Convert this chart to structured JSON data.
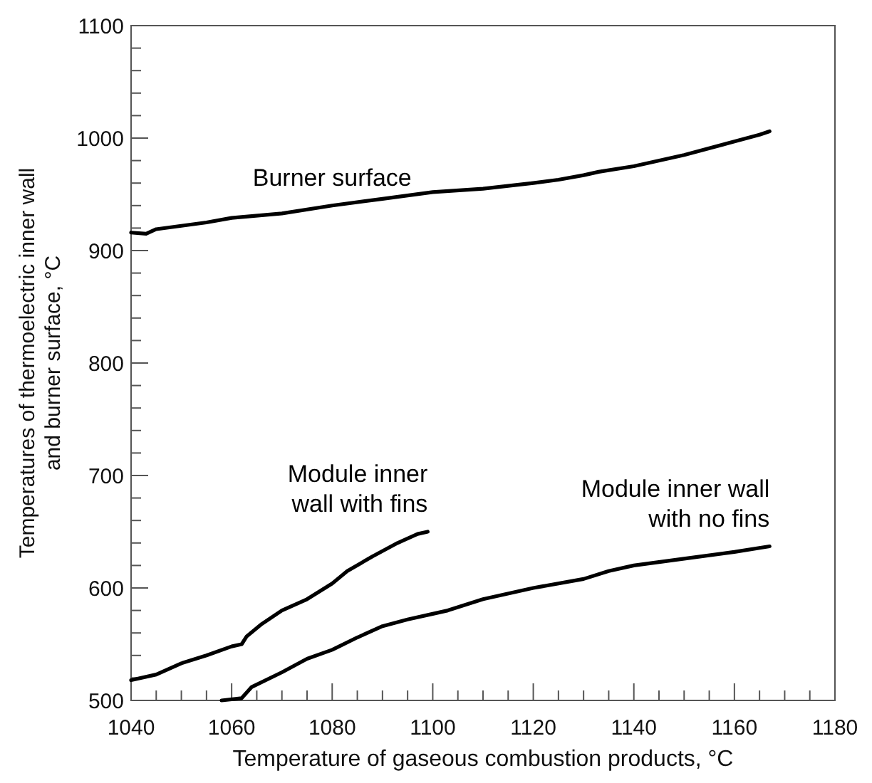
{
  "chart_data": {
    "type": "line",
    "xlabel": "Temperature of gaseous combustion products, °C",
    "ylabel": "Temperatures of thermoelectric inner wall\nand burner surface, °C",
    "xlim": [
      1040,
      1180
    ],
    "ylim": [
      500,
      1100
    ],
    "xticks": [
      1040,
      {
        "value": 1045,
        "label": null
      },
      {
        "value": 1050,
        "label": null
      },
      {
        "value": 1055,
        "label": null
      },
      1060,
      {
        "value": 1065,
        "label": null
      },
      {
        "value": 1070,
        "label": null
      },
      {
        "value": 1075,
        "label": null
      },
      1080,
      {
        "value": 1085,
        "label": null
      },
      {
        "value": 1090,
        "label": null
      },
      {
        "value": 1095,
        "label": null
      },
      1100,
      {
        "value": 1105,
        "label": null
      },
      {
        "value": 1110,
        "label": null
      },
      {
        "value": 1115,
        "label": null
      },
      1120,
      {
        "value": 1125,
        "label": null
      },
      {
        "value": 1130,
        "label": null
      },
      {
        "value": 1135,
        "label": null
      },
      1140,
      {
        "value": 1145,
        "label": null
      },
      {
        "value": 1150,
        "label": null
      },
      {
        "value": 1155,
        "label": null
      },
      1160,
      {
        "value": 1165,
        "label": null
      },
      {
        "value": 1170,
        "label": null
      },
      {
        "value": 1175,
        "label": null
      },
      1180
    ],
    "yticks": [
      500,
      {
        "value": 520,
        "label": null
      },
      {
        "value": 540,
        "label": null
      },
      {
        "value": 560,
        "label": null
      },
      {
        "value": 580,
        "label": null
      },
      600,
      {
        "value": 620,
        "label": null
      },
      {
        "value": 640,
        "label": null
      },
      {
        "value": 660,
        "label": null
      },
      {
        "value": 680,
        "label": null
      },
      700,
      {
        "value": 720,
        "label": null
      },
      {
        "value": 740,
        "label": null
      },
      {
        "value": 760,
        "label": null
      },
      {
        "value": 780,
        "label": null
      },
      800,
      {
        "value": 820,
        "label": null
      },
      {
        "value": 840,
        "label": null
      },
      {
        "value": 860,
        "label": null
      },
      {
        "value": 880,
        "label": null
      },
      900,
      {
        "value": 920,
        "label": null
      },
      {
        "value": 940,
        "label": null
      },
      {
        "value": 960,
        "label": null
      },
      {
        "value": 980,
        "label": null
      },
      1000,
      {
        "value": 1020,
        "label": null
      },
      {
        "value": 1040,
        "label": null
      },
      {
        "value": 1060,
        "label": null
      },
      {
        "value": 1080,
        "label": null
      },
      1100
    ],
    "grid": false,
    "marker": "none",
    "line_style": "solid",
    "series": [
      {
        "name": "Burner surface",
        "color": "#000000",
        "x": [
          1040,
          1043,
          1045,
          1050,
          1055,
          1060,
          1070,
          1080,
          1090,
          1100,
          1110,
          1120,
          1125,
          1130,
          1133,
          1140,
          1150,
          1160,
          1165,
          1167
        ],
        "values": [
          916,
          915,
          919,
          922,
          925,
          929,
          933,
          940,
          946,
          952,
          955,
          960,
          963,
          967,
          970,
          975,
          985,
          997,
          1003,
          1006
        ]
      },
      {
        "name": "Module inner\nwall with fins",
        "color": "#000000",
        "x": [
          1040,
          1045,
          1050,
          1055,
          1060,
          1062,
          1063,
          1066,
          1070,
          1075,
          1080,
          1083,
          1088,
          1093,
          1097,
          1099
        ],
        "values": [
          518,
          523,
          533,
          540,
          548,
          550,
          557,
          568,
          580,
          590,
          604,
          615,
          628,
          640,
          648,
          650
        ]
      },
      {
        "name": "Module inner wall\nwith no fins",
        "color": "#000000",
        "x": [
          1058,
          1062,
          1064,
          1070,
          1075,
          1080,
          1085,
          1090,
          1095,
          1100,
          1103,
          1110,
          1120,
          1130,
          1135,
          1140,
          1150,
          1160,
          1167
        ],
        "values": [
          500,
          502,
          512,
          525,
          537,
          545,
          556,
          566,
          572,
          577,
          580,
          590,
          600,
          608,
          615,
          620,
          626,
          632,
          637
        ]
      }
    ]
  }
}
